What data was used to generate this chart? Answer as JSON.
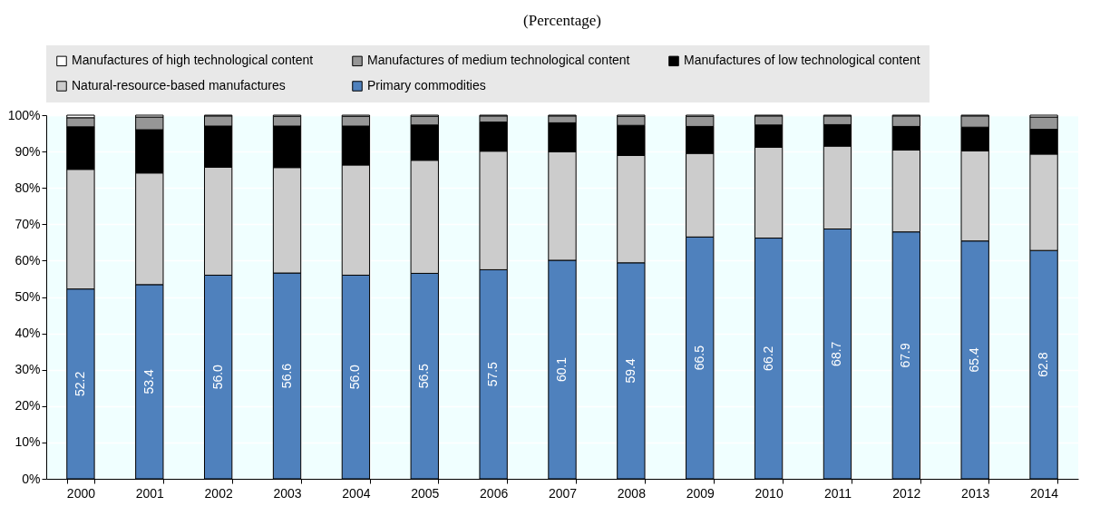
{
  "chart_data": {
    "type": "bar",
    "title": "(Percentage)",
    "stacked": true,
    "grid": true,
    "legend": "top",
    "categories": [
      "2000",
      "2001",
      "2002",
      "2003",
      "2004",
      "2005",
      "2006",
      "2007",
      "2008",
      "2009",
      "2010",
      "2011",
      "2012",
      "2013",
      "2014"
    ],
    "ylim": [
      0,
      100
    ],
    "yticks": [
      {
        "value": 0,
        "label": "0%"
      },
      {
        "value": 10,
        "label": "10%"
      },
      {
        "value": 20,
        "label": "20%"
      },
      {
        "value": 30,
        "label": "30%"
      },
      {
        "value": 40,
        "label": "40%"
      },
      {
        "value": 50,
        "label": "50%"
      },
      {
        "value": 60,
        "label": "60%"
      },
      {
        "value": 70,
        "label": "70%"
      },
      {
        "value": 80,
        "label": "80%"
      },
      {
        "value": 90,
        "label": "90%"
      },
      {
        "value": 100,
        "label": "100%"
      }
    ],
    "series": [
      {
        "name": "Primary commodities",
        "color": "#4f81bd",
        "values": [
          52.2,
          53.4,
          56.0,
          56.6,
          56.0,
          56.5,
          57.5,
          60.1,
          59.4,
          66.5,
          66.2,
          68.7,
          67.9,
          65.4,
          62.8
        ],
        "value_labels": [
          "52.2",
          "53.4",
          "56.0",
          "56.6",
          "56.0",
          "56.5",
          "57.5",
          "60.1",
          "59.4",
          "66.5",
          "66.2",
          "68.7",
          "67.9",
          "65.4",
          "62.8"
        ]
      },
      {
        "name": "Natural-resource-based manufactures",
        "color": "#cccccc",
        "values": [
          32.9,
          30.7,
          29.7,
          29.0,
          30.3,
          31.1,
          32.6,
          29.8,
          29.5,
          23.0,
          25.0,
          22.8,
          22.5,
          24.8,
          26.5
        ]
      },
      {
        "name": "Manufactures of low technological content",
        "color": "#000000",
        "values": [
          11.7,
          11.9,
          11.3,
          11.4,
          10.7,
          9.7,
          8.0,
          8.0,
          8.3,
          7.4,
          6.1,
          5.9,
          6.5,
          6.5,
          6.8
        ]
      },
      {
        "name": "Manufactures of medium technological content",
        "color": "#969696",
        "values": [
          2.5,
          3.5,
          2.8,
          2.7,
          2.7,
          2.4,
          1.7,
          1.9,
          2.5,
          2.8,
          2.5,
          2.4,
          2.9,
          3.1,
          3.4
        ]
      },
      {
        "name": "Manufactures of high technological content",
        "color": "#ffffff",
        "values": [
          0.7,
          0.5,
          0.2,
          0.3,
          0.3,
          0.3,
          0.2,
          0.2,
          0.3,
          0.3,
          0.2,
          0.2,
          0.2,
          0.2,
          0.5
        ]
      }
    ]
  }
}
